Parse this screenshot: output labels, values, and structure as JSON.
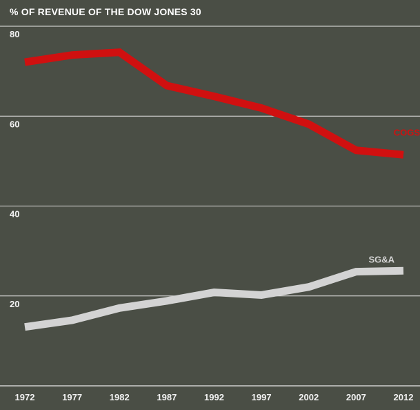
{
  "chart_data": {
    "type": "line",
    "title": "% OF REVENUE OF THE DOW JONES 30",
    "x": [
      "1972",
      "1977",
      "1982",
      "1987",
      "1992",
      "1997",
      "2002",
      "2007",
      "2012"
    ],
    "ylim": [
      0,
      80
    ],
    "yticks": [
      20,
      40,
      60,
      80
    ],
    "grid": true,
    "series": [
      {
        "name": "COGS",
        "color": "#d01010",
        "values": [
          72.0,
          73.6,
          74.2,
          66.8,
          64.4,
          61.8,
          58.2,
          52.4,
          51.4
        ]
      },
      {
        "name": "SG&A",
        "color": "#d3d3d3",
        "values": [
          13.1,
          14.6,
          17.3,
          18.9,
          20.8,
          20.2,
          22.0,
          25.4,
          25.6
        ]
      }
    ]
  }
}
